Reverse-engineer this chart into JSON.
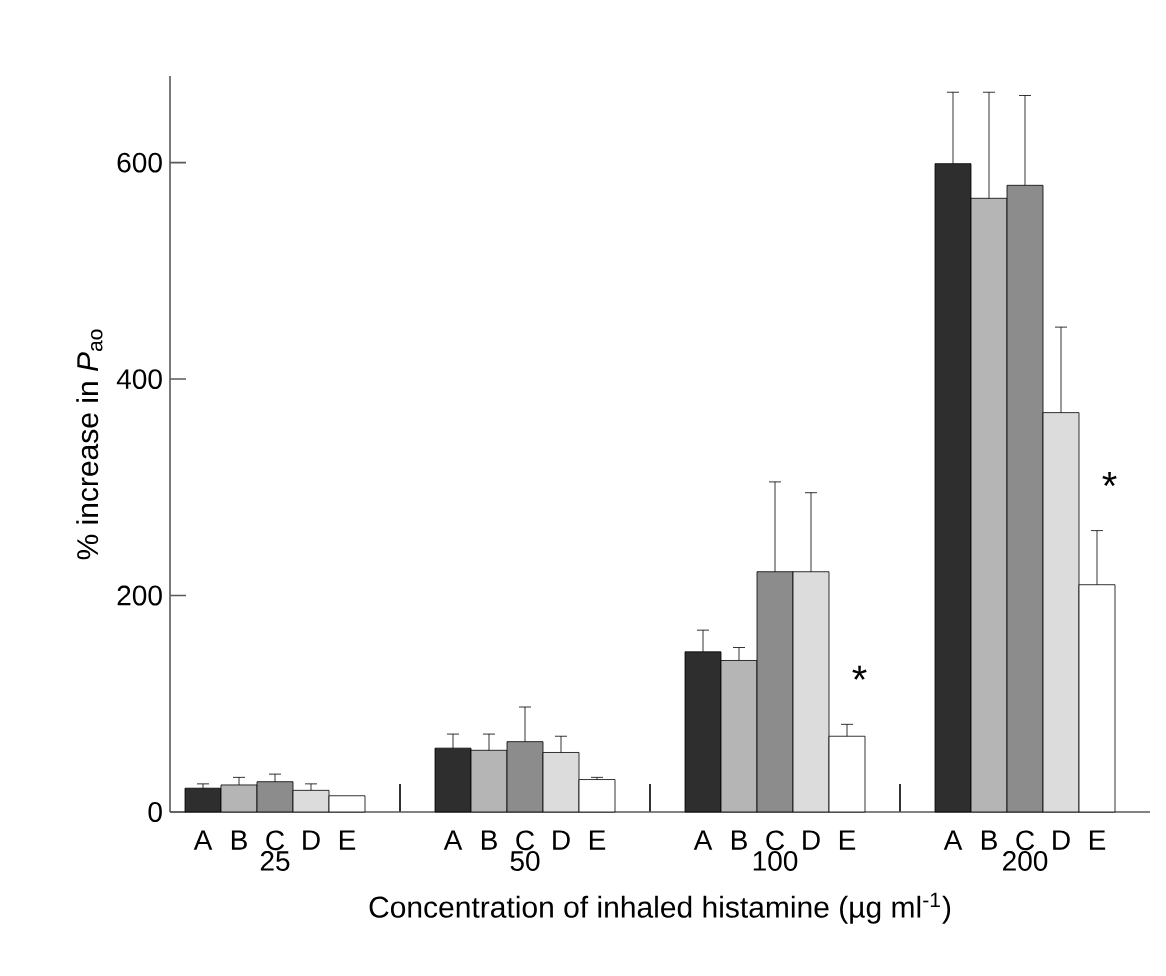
{
  "chart_data": {
    "type": "bar",
    "xlabel": "Concentration of inhaled histamine (µg ml$^{-1}$)",
    "ylabel": "% increase in *P*$_{ao}$",
    "categories": [
      "25",
      "50",
      "100",
      "200"
    ],
    "ylim": [
      0,
      680
    ],
    "yticks": [
      0,
      200,
      400,
      600
    ],
    "series": [
      {
        "name": "A",
        "color": "#2e2e2e",
        "values": [
          22,
          59,
          148,
          599
        ],
        "errors": [
          [
            22,
            26
          ],
          [
            59,
            72
          ],
          [
            148,
            168
          ],
          [
            599,
            665
          ]
        ]
      },
      {
        "name": "B",
        "color": "#b5b5b5",
        "values": [
          25,
          57,
          140,
          567
        ],
        "errors": [
          [
            25,
            32
          ],
          [
            57,
            72
          ],
          [
            140,
            152
          ],
          [
            567,
            665
          ]
        ]
      },
      {
        "name": "C",
        "color": "#8c8c8c",
        "values": [
          28,
          65,
          222,
          579
        ],
        "errors": [
          [
            28,
            35
          ],
          [
            65,
            97
          ],
          [
            222,
            305
          ],
          [
            579,
            662
          ]
        ]
      },
      {
        "name": "D",
        "color": "#dcdcdc",
        "values": [
          20,
          55,
          222,
          369
        ],
        "errors": [
          [
            20,
            26
          ],
          [
            55,
            70
          ],
          [
            222,
            295
          ],
          [
            369,
            448
          ]
        ]
      },
      {
        "name": "E",
        "color": "#ffffff",
        "values": [
          15,
          30,
          70,
          210
        ],
        "errors": [
          null,
          [
            30,
            32
          ],
          [
            70,
            81
          ],
          [
            210,
            260
          ]
        ]
      }
    ],
    "annotations": [
      "*",
      "*"
    ]
  }
}
